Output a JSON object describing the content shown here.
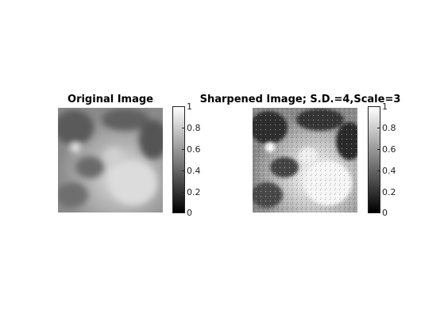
{
  "panels": [
    {
      "title": "Original Image",
      "colorbar_ticks": [
        "0",
        "0.2",
        "0.4",
        "0.6",
        "0.8",
        "1"
      ]
    },
    {
      "title": "Sharpened Image; S.D.=4,Scale=3",
      "colorbar_ticks": [
        "0",
        "0.2",
        "0.4",
        "0.6",
        "0.8",
        "1"
      ]
    }
  ],
  "colormap": "gray"
}
